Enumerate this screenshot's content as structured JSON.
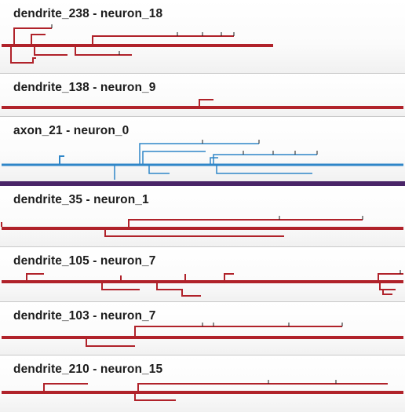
{
  "colors": {
    "dendrite": "#b0222a",
    "axon": "#2f86c8",
    "selection": "#4a2568"
  },
  "items": [
    {
      "title": "dendrite_238 - neuron_18",
      "kind": "dendrite",
      "selected": false
    },
    {
      "title": "dendrite_138 - neuron_9",
      "kind": "dendrite",
      "selected": false
    },
    {
      "title": "axon_21 - neuron_0",
      "kind": "axon",
      "selected": true
    },
    {
      "title": "dendrite_35 - neuron_1",
      "kind": "dendrite",
      "selected": false
    },
    {
      "title": "dendrite_105 - neuron_7",
      "kind": "dendrite",
      "selected": false
    },
    {
      "title": "dendrite_103 - neuron_7",
      "kind": "dendrite",
      "selected": false
    },
    {
      "title": "dendrite_210 - neuron_15",
      "kind": "dendrite",
      "selected": false
    }
  ]
}
